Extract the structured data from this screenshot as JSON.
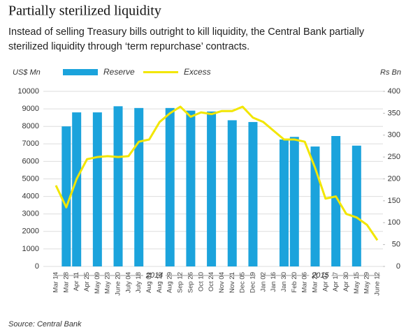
{
  "chart_data": {
    "type": "bar-line",
    "title": "Partially sterilized liquidity",
    "subtitle": [
      "Instead of selling Treasury bills outright to kill liquidity, the Central Bank partially",
      "sterilized liquidity through ‘term repurchase’ contracts."
    ],
    "ylabel": "US$ Mn",
    "y2label": "Rs Bn",
    "source": "Source: Central Bank",
    "categories": [
      "Mar 14",
      "Mar 28",
      "Apr 11",
      "Apr 25",
      "May 09",
      "May 23",
      "June 20",
      "July 04",
      "July 18",
      "Aug 01",
      "Aug 15",
      "Aug 29",
      "Sep 12",
      "Sep 26",
      "Oct 10",
      "Oct 24",
      "Nov 04",
      "Nov 21",
      "Dec 05",
      "Dec 19",
      "Jan 02",
      "Jan 16",
      "Jan 30",
      "Feb 20",
      "Mar 06",
      "Mar 20",
      "Apr 02",
      "Apr 17",
      "Apr 30",
      "May 15",
      "May 29",
      "June 12"
    ],
    "annotations": [
      "2014",
      "2015"
    ],
    "series": [
      {
        "name": "Reserve",
        "color": "#1ba3dc",
        "kind": "bar",
        "values": [
          null,
          8000,
          8800,
          null,
          8800,
          null,
          9150,
          null,
          9050,
          null,
          null,
          9050,
          null,
          8900,
          null,
          8850,
          null,
          8350,
          null,
          8250,
          null,
          null,
          7250,
          7400,
          null,
          6850,
          null,
          7450,
          null,
          6900,
          null,
          null
        ]
      },
      {
        "name": "Excess",
        "color": "#f2e600",
        "kind": "line",
        "axis": "y2",
        "values": [
          185,
          135,
          200,
          245,
          250,
          252,
          250,
          252,
          285,
          290,
          330,
          350,
          365,
          342,
          352,
          348,
          355,
          355,
          365,
          340,
          330,
          310,
          290,
          290,
          285,
          225,
          155,
          160,
          120,
          112,
          95,
          60
        ]
      }
    ],
    "ylim": [
      0,
      10000
    ],
    "yticks": [
      0,
      1000,
      2000,
      3000,
      4000,
      5000,
      6000,
      7000,
      8000,
      9000,
      10000
    ],
    "y2lim": [
      0,
      400
    ],
    "y2ticks": [
      0,
      50,
      100,
      150,
      200,
      250,
      300,
      350,
      400
    ],
    "grid": true
  }
}
